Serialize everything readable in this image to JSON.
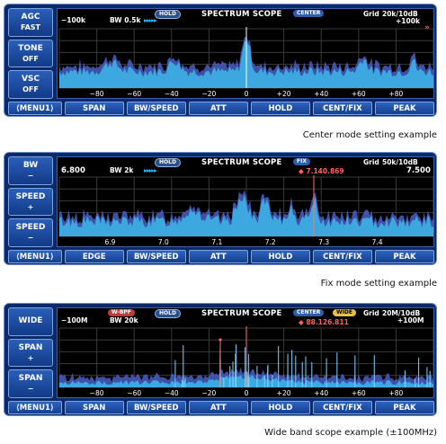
{
  "panels": [
    {
      "side_buttons": [
        {
          "line1": "AGC",
          "line2": "FAST"
        },
        {
          "line1": "TONE",
          "line2": "OFF"
        },
        {
          "line1": "VSC",
          "line2": "OFF"
        }
      ],
      "header": {
        "left": "−100k",
        "bw": "BW 0.5k",
        "hold": "HOLD",
        "title": "SPECTRUM SCOPE",
        "mode": "CENTER",
        "grid_label": "Grid",
        "grid_value": "20k/10dB",
        "right": "+100k",
        "right_arrow": "»"
      },
      "x_ticks": [
        "−80",
        "−60",
        "−40",
        "−20",
        "0",
        "+20",
        "+40",
        "+60",
        "+80"
      ],
      "menu": [
        "⟨MENU1⟩",
        "SPAN",
        "BW/SPEED",
        "ATT",
        "HOLD",
        "CENT/FIX",
        "PEAK"
      ],
      "caption": "Center mode setting example",
      "trace_color": "#3db1e6",
      "hold_color": "#4a5ec4"
    },
    {
      "side_buttons": [
        {
          "line1": "BW",
          "line2": "−"
        },
        {
          "line1": "SPEED",
          "line2": "+"
        },
        {
          "line1": "SPEED",
          "line2": "−"
        }
      ],
      "header": {
        "left": "6.800",
        "bw": "BW 2k",
        "hold": "HOLD",
        "title": "SPECTRUM SCOPE",
        "mode": "FIX",
        "marker": "7.140.869",
        "grid_label": "Grid",
        "grid_value": "50k/10dB",
        "right": "7.500"
      },
      "x_ticks": [
        "6.9",
        "7.0",
        "7.1",
        "7.2",
        "7.3",
        "7.4"
      ],
      "menu": [
        "⟨MENU1⟩",
        "EDGE",
        "BW/SPEED",
        "ATT",
        "HOLD",
        "CENT/FIX",
        "PEAK"
      ],
      "caption": "Fix mode setting example",
      "trace_color": "#3db1e6",
      "hold_color": "#4a5ec4"
    },
    {
      "side_buttons": [
        {
          "line1": "WIDE",
          "line2": ""
        },
        {
          "line1": "SPAN",
          "line2": "+"
        },
        {
          "line1": "SPAN",
          "line2": "−"
        }
      ],
      "header": {
        "wbpf": "W-BPF",
        "left": "−100M",
        "bw": "BW 20k",
        "hold": "HOLD",
        "title": "SPECTRUM SCOPE",
        "mode": "CENTER",
        "wide": "WIDE",
        "marker": "88.126.811",
        "grid_label": "Grid",
        "grid_value": "20M/10dB",
        "right": "+100M"
      },
      "x_ticks": [
        "−80",
        "−60",
        "−40",
        "−20",
        "0",
        "+20",
        "+40",
        "+60",
        "+80"
      ],
      "menu": [
        "⟨MENU1⟩",
        "SPAN",
        "BW/SPEED",
        "ATT",
        "HOLD",
        "CENT/FIX",
        "PEAK"
      ],
      "caption": "Wide band scope example (±100MHz)",
      "trace_color": "#3db1e6",
      "hold_color": "#4a5ec4"
    }
  ]
}
